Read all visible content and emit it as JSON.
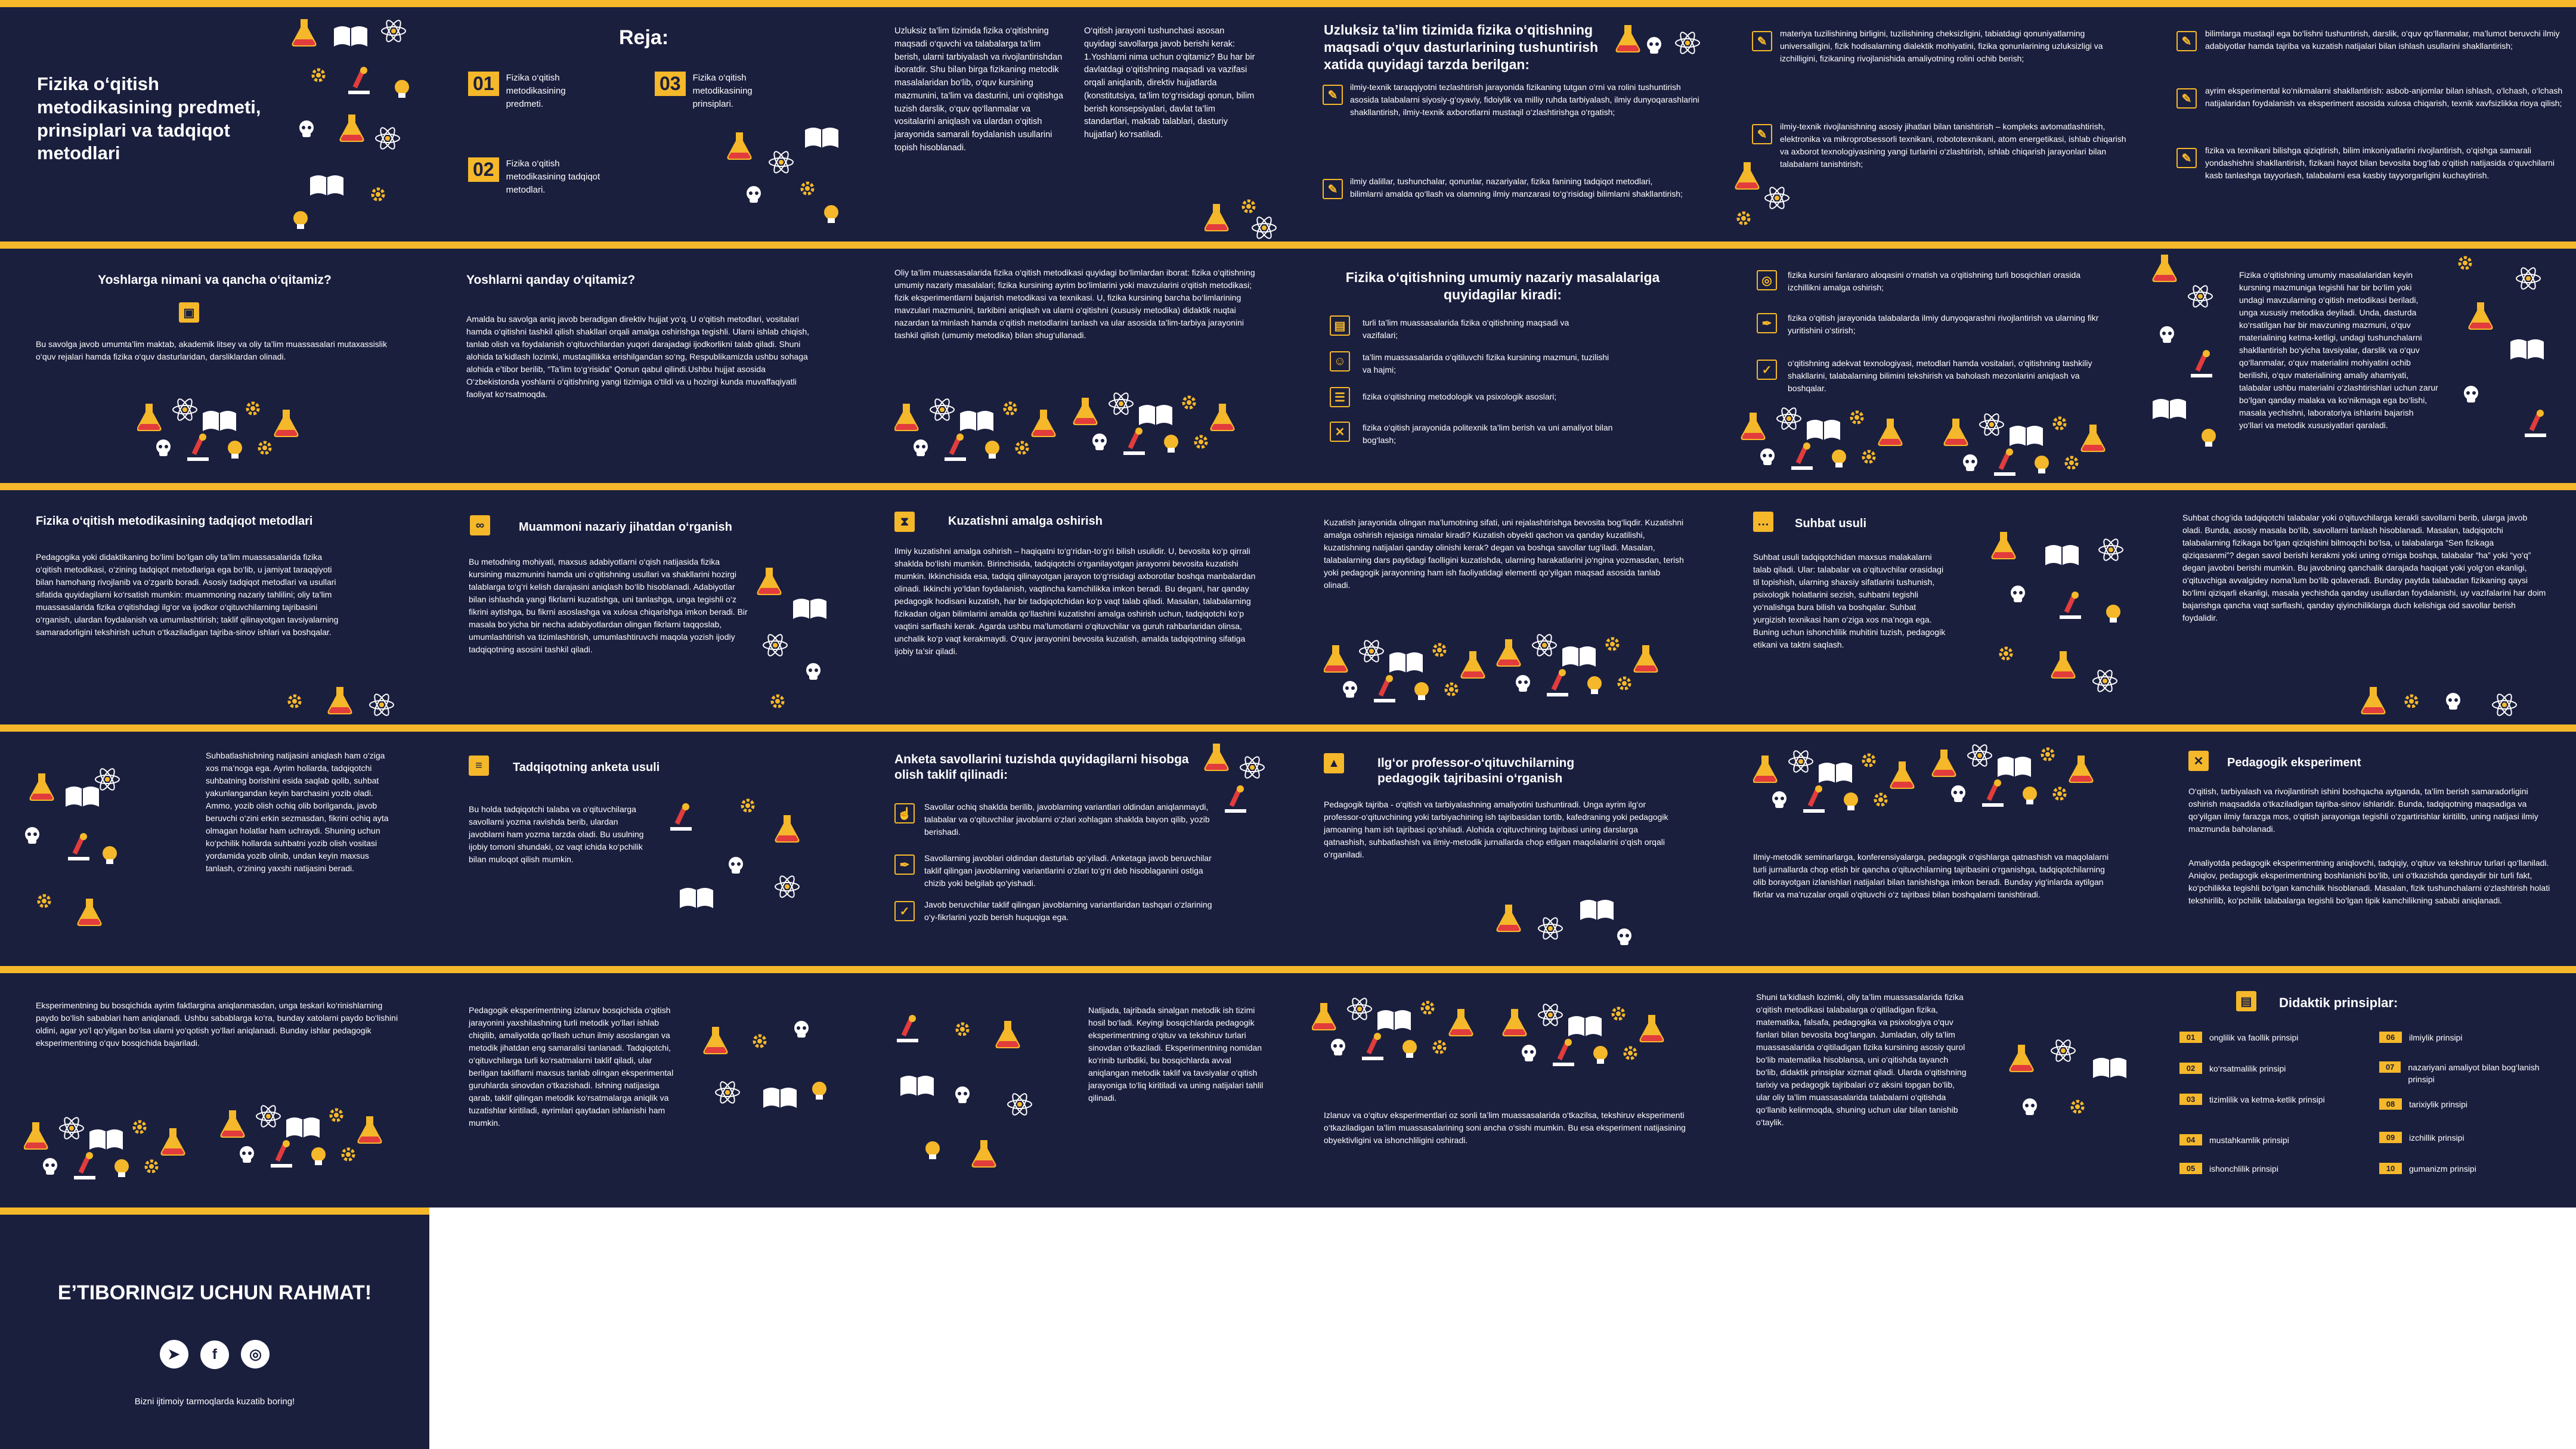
{
  "colors": {
    "background": "#1b1f3e",
    "accent": "#f5b82a",
    "text": "#ffffff"
  },
  "s1": {
    "title": "Fizika o‘qitish metodikasining predmeti, prinsiplari va tadqiqot metodlari"
  },
  "s2": {
    "title": "Reja:",
    "items": [
      {
        "num": "01",
        "text": "Fizika o‘qitish metodikasining predmeti."
      },
      {
        "num": "02",
        "text": "Fizika o‘qitish metodikasining tadqiqot metodlari."
      },
      {
        "num": "03",
        "text": "Fizika o‘qitish metodikasining prinsiplari."
      }
    ]
  },
  "s3": {
    "col1": "Uzluksiz ta’lim tizimida fizika o‘qitishning maqsadi o‘quvchi va talabalarga ta’lim berish, ularni tarbiyalash va rivojlantirishdan iboratdir. Shu bilan birga fizikaning metodik masalalaridan bo‘lib, o‘quv kursining mazmunini, ta’lim va dasturini, uni o‘qitishga tuzish darslik, o‘quv qo‘llanmalar va vositalarini aniqlash va ulardan o‘qitish jarayonida samarali foydalanish usullarini topish hisoblanadi.",
    "col2": "O‘qitish jarayoni tushunchasi asosan quyidagi savollarga javob berishi kerak: 1.Yoshlarni nima uchun o‘qitamiz? Bu har bir davlatdagi o‘qitishning maqsadi va vazifasi orqali aniqlanib, direktiv hujjatlarda (konstitutsiya, ta’lim to‘g‘risidagi qonun, bilim berish konsepsiyalari, davlat ta’lim standartlari, maktab talablari, dasturiy hujjatlar) ko‘rsatiladi."
  },
  "s4": {
    "title": "Uzluksiz ta’lim tizimida fizika o‘qitishning maqsadi o‘quv dasturlarining tushuntirish xatida quyidagi tarzda berilgan:",
    "items": [
      "ilmiy-texnik taraqqiyotni tezlashtirish jarayonida fizikaning tutgan o‘rni va rolini tushuntirish asosida talabalarni siyosiy-g‘oyaviy, fidoiylik va milliy ruhda tarbiyalash, ilmiy dunyoqarashlarini shakllantirish, ilmiy-texnik axborotlarni mustaqil o‘zlashtirishga o‘rgatish;",
      "ilmiy dalillar, tushunchalar, qonunlar, nazariyalar, fizika fanining tadqiqot metodlari, bilimlarni amalda qo‘llash va olamning ilmiy manzarasi to‘g‘risidagi bilimlarni shakllantirish;"
    ]
  },
  "s5": {
    "items": [
      "materiya tuzilishining birligini, tuzilishining cheksizligini, tabiatdagi qonuniyatlarning universalligini, fizik hodisalarning dialektik mohiyatini, fizika qonunlarining uzluksizligi va izchilligini, fizikaning rivojlanishida amaliyotning rolini ochib berish;",
      "ilmiy-texnik rivojlanishning asosiy jihatlari bilan tanishtirish – kompleks avtomatlashtirish, elektronika va mikroprotsessorli texnikani, robototexnikani, atom energetikasi, ishlab chiqarish va axborot texnologiyasining yangi turlarini o‘zlashtirish, ishlab chiqarish jarayonlari bilan talabalarni tanishtirish;"
    ]
  },
  "s6": {
    "items": [
      "bilimlarga mustaqil ega bo‘lishni tushuntirish, darslik, o‘quv qo‘llanmalar, ma’lumot beruvchi ilmiy adabiyotlar hamda tajriba va kuzatish natijalari bilan ishlash usullarini shakllantirish;",
      "ayrim eksperimental ko‘nikmalarni shakllantirish: asbob-anjomlar bilan ishlash, o‘lchash, o‘lchash natijalaridan foydalanish va eksperiment asosida xulosa chiqarish, texnik xavfsizlikka rioya qilish;",
      "fizika va texnikani bilishga qiziqtirish, bilim imkoniyatlarini rivojlantirish, o‘qishga samarali yondashishni shakllantirish, fizikani hayot bilan bevosita bog‘lab o‘qitish natijasida o‘quvchilarni kasb tanlashga tayyorlash, talabalarni esa kasbiy tayyorgarligini kuchaytirish."
    ]
  },
  "s7": {
    "title": "Yoshlarga nimani va qancha o‘qitamiz?",
    "text": "Bu savolga javob umumta’lim maktab, akademik litsey va oliy ta’lim muassasalari mutaxassislik o‘quv rejalari hamda fizika o‘quv dasturlaridan, darsliklardan olinadi."
  },
  "s8": {
    "title": "Yoshlarni qanday o‘qitamiz?",
    "text": "Amalda bu savolga aniq javob beradigan direktiv hujjat yo‘q. U o‘qitish metodlari, vositalari hamda o‘qitishni tashkil qilish shakllari orqali amalga oshirishga tegishli. Ularni ishlab chiqish, tanlab olish va foydalanish o‘qituvchilardan yuqori darajadagi ijodkorlikni talab qiladi. Shuni alohida ta’kidlash lozimki, mustaqillikka erishilgandan so‘ng, Respublikamizda ushbu sohaga alohida e’tibor berilib, “Ta’lim to‘g‘risida” Qonun qabul qilindi.Ushbu hujjat asosida O‘zbekistonda yoshlarni o‘qitishning yangi tizimiga o‘tildi va u hozirgi kunda muvaffaqiyatli faoliyat ko‘rsatmoqda."
  },
  "s9": {
    "text": "Oliy ta’lim muassasalarida fizika o‘qitish metodikasi quyidagi bo‘limlardan iborat: fizika o‘qitishning umumiy nazariy masalalari; fizika kursining ayrim bo‘limlarini yoki mavzularini o‘qitish metodikasi; fizik eksperimentlarni bajarish metodikasi va texnikasi. U, fizika kursining barcha bo‘limlarining mavzulari mazmunini, tarkibini aniqlash va ularni o‘qitishni (xususiy metodika) didaktik nuqtai nazardan ta’minlash hamda o‘qitish metodlarini tanlash va ular asosida ta’lim-tarbiya jarayonini tashkil qilish (umumiy metodika) bilan shug‘ullanadi."
  },
  "s10": {
    "title": "Fizika o‘qitishning umumiy nazariy masalalariga quyidagilar kiradi:",
    "items": [
      "turli ta’lim muassasalarida fizika o‘qitishning maqsadi va vazifalari;",
      "ta’lim muassasalarida o‘qitiluvchi fizika kursining mazmuni, tuzilishi va hajmi;",
      "fizika o‘qitishning metodologik va psixologik asoslari;",
      "fizika o‘qitish jarayonida politexnik ta’lim berish va uni amaliyot bilan bog‘lash;"
    ]
  },
  "s11": {
    "items": [
      "fizika kursini fanlararo aloqasini o‘rnatish va o‘qitishning turli bosqichlari orasida izchillikni amalga oshirish;",
      "fizika o‘qitish jarayonida talabalarda ilmiy dunyoqarashni rivojlantirish va ularning fikr yuritishini o‘stirish;",
      "o‘qitishning adekvat texnologiyasi, metodlari hamda vositalari, o‘qitishning tashkiliy shakllarini, talabalarning bilimini tekshirish va baholash mezonlarini aniqlash va boshqalar."
    ]
  },
  "s12": {
    "text": "Fizika o‘qitishning umumiy masalalaridan keyin kursning mazmuniga tegishli har bir bo‘lim yoki undagi mavzularning o‘qitish metodikasi beriladi, unga xususiy metodika deyiladi. Unda, dasturda ko‘rsatilgan har bir mavzuning mazmuni, o‘quv materialining ketma-ketligi, undagi tushunchalarni shakllantirish bo‘yicha tavsiyalar, darslik va o‘quv qo‘llanmalar, o‘quv materialini mohiyatini ochib berilishi, o‘quv materialining amaliy ahamiyati, talabalar ushbu materialni o‘zlashtirishlari uchun zarur bo‘lgan qanday malaka va ko‘nikmaga ega bo‘lishi, masala yechishni, laboratoriya ishlarini bajarish yo‘llari va metodik xususiyatlari qaraladi."
  },
  "s13": {
    "title": "Fizika o‘qitish metodikasining tadqiqot metodlari",
    "text": "Pedagogika yoki didaktikaning bo‘limi bo‘lgan oliy ta’lim muassasalarida fizika o‘qitish metodikasi, o‘zining tadqiqot metodlariga ega bo‘lib, u jamiyat taraqqiyoti bilan hamohang rivojlanib va o‘zgarib boradi. Asosiy tadqiqot metodlari va usullari sifatida quyidagilarni ko‘rsatish mumkin: muammoning nazariy tahlilini; oliy ta’lim muassasalarida fizika o‘qitishdagi ilg‘or va ijodkor o‘qituvchilarning tajribasini o‘rganish, ulardan foydalanish va umumlashtirish; taklif qilinayotgan tavsiyalarning samaradorligini tekshirish uchun o‘tkaziladigan tajriba-sinov ishlari va boshqalar."
  },
  "s14": {
    "title": "Muammoni nazariy jihatdan o‘rganish",
    "text": "Bu metodning mohiyati, maxsus adabiyotlarni o‘qish natijasida fizika kursining mazmunini hamda uni o‘qitishning usullari va shakllarini hozirgi talablarga to‘g‘ri kelish darajasini aniqlash bo‘lib hisoblanadi. Adabiyotlar bilan ishlashda yangi fikrlarni kuzatishga, uni tanlashga, unga tegishli o‘z fikrini aytishga, bu fikrni asoslashga va xulosa chiqarishga imkon beradi. Bir masala bo‘yicha bir necha adabiyotlardan olingan fikrlarni taqqoslab, umumlashtirish va tizimlashtirish, umumlashtiruvchi maqola yozish ijodiy tadqiqotning asosini tashkil qiladi."
  },
  "s15": {
    "title": "Kuzatishni amalga oshirish",
    "text": "Ilmiy kuzatishni amalga oshirish – haqiqatni to‘g‘ridan-to‘g‘ri bilish usulidir. U, bevosita ko‘p qirrali shaklda bo‘lishi mumkin. Birinchisida, tadqiqotchi o‘rganilayotgan jarayonni bevosita kuzatishi mumkin. Ikkinchisida esa, tadqiq qilinayotgan jarayon to‘g‘risidagi axborotlar boshqa manbalardan olinadi. Ikkinchi yo‘ldan foydalanish, vaqtincha kamchilikka imkon beradi. Bu degani, har qanday pedagogik hodisani kuzatish, har bir tadqiqotchidan ko‘p vaqt talab qiladi. Masalan, talabalarning fizikadan olgan bilimlarini amalda qo‘llashini kuzatishni amalga oshirish uchun, tadqiqotchi ko‘p vaqtini sarflashi kerak. Agarda ushbu ma’lumotlarni o‘qituvchilar va guruh rahbarlaridan olinsa, unchalik ko‘p vaqt kerakmaydi. O‘quv jarayonini bevosita kuzatish, amalda tadqiqotning sifatiga ijobiy ta’sir qiladi."
  },
  "s16": {
    "text": "Kuzatish jarayonida olingan ma’lumotning sifati, uni rejalashtirishga bevosita bog‘liqdir. Kuzatishni amalga oshirish rejasiga nimalar kiradi? Kuzatish obyekti qachon va qanday kuzatilishi, kuzatishning natijalari qanday olinishi kerak? degan va boshqa savollar tug‘iladi. Masalan, talabalarning dars paytidagi faolligini kuzatishda, ularning harakatlarini jo‘ngina yozmasdan, terish yoki pedagogik jarayonning ham ish faoliyatidagi elementi qo‘yilgan maqsad asosida tanlab olinadi."
  },
  "s17": {
    "title": "Suhbat usuli",
    "text": "Suhbat usuli tadqiqotchidan maxsus malakalarni talab qiladi. Ular: talabalar va o‘qituvchilar orasidagi til topishish, ularning shaxsiy sifatlarini tushunish, psixologik holatlarini sezish, suhbatni tegishli yo‘nalishga bura bilish va boshqalar. Suhbat yurgizish texnikasi ham o‘ziga xos ma’noga ega. Buning uchun ishonchlilik muhitini tuzish, pedagogik etikani va taktni saqlash."
  },
  "s18": {
    "text": "Suhbat chog‘ida tadqiqotchi talabalar yoki o‘qituvchilarga kerakli savollarni berib, ularga javob oladi. Bunda, asosiy masala bo‘lib, savollarni tanlash hisoblanadi. Masalan, tadqiqotchi talabalarning fizikaga bo‘lgan qiziqishini bilmoqchi bo‘lsa, u talabalarga “Sen fizikaga qiziqasanmi”? degan savol berishi kerakmi yoki uning o‘rniga boshqa, talabalar “ha” yoki “yo‘q” degan javobni berishi mumkin. Bu javobning qanchalik darajada haqiqat yoki yolg‘on ekanligi, o‘qituvchiga avvalgidey noma’lum bo‘lib qolaveradi. Bunday paytda talabadan fizikaning qaysi bo‘limi qiziqarli ekanligi, masala yechishda qanday usullardan foydalanishi, uy vazifalarini har doim bajarishga qancha vaqt sarflashi, qanday qiyinchiliklarga duch kelishiga oid savollar berish foydalidir."
  },
  "s19": {
    "text": "Suhbatlashishning natijasini aniqlash ham o‘ziga xos ma’noga ega. Ayrim hollarda, tadqiqotchi suhbatning borishini esida saqlab qolib, suhbat yakunlangandan keyin barchasini yozib oladi. Ammo, yozib olish ochiq olib borilganda, javob beruvchi o‘zini erkin sezmasdan, fikrini ochiq ayta olmagan holatlar ham uchraydi. Shuning uchun ko‘pchilik hollarda suhbatni yozib olish vositasi yordamida yozib olinib, undan keyin maxsus tanlash, o‘zining yaxshi natijasini beradi."
  },
  "s20": {
    "title": "Tadqiqotning anketa usuli",
    "text": "Bu holda tadqiqotchi talaba va o‘qituvchilarga savollarni yozma ravishda berib, ulardan javoblarni ham yozma tarzda oladi. Bu usulning ijobiy tomoni shundaki, oz vaqt ichida ko‘pchilik bilan muloqot qilish mumkin."
  },
  "s21": {
    "title": "Anketa savollarini tuzishda quyidagilarni hisobga olish taklif qilinadi:",
    "items": [
      "Savollar ochiq shaklda berilib, javoblarning variantlari oldindan aniqlanmaydi, talabalar va o‘qituvchilar javoblarni o‘zlari xohlagan shaklda bayon qilib, yozib berishadi.",
      "Savollarning javoblari oldindan dasturlab qo‘yiladi. Anketaga javob beruvchilar taklif qilingan javoblarning variantlarini o‘zlari to‘g‘ri deb hisoblaganini ostiga chizib yoki belgilab qo‘yishadi.",
      "Javob beruvchilar taklif qilingan javoblarning variantlaridan tashqari o‘zlarining o‘y-fikrlarini yozib berish huquqiga ega."
    ]
  },
  "s22": {
    "title": "Ilg‘or professor-o‘qituvchilarning pedagogik tajribasini o‘rganish",
    "text": "Pedagogik tajriba - o‘qitish va tarbiyalashning amaliyotini tushuntiradi. Unga ayrim ilg‘or professor-o‘qituvchining yoki tarbiyachining ish tajribasidan tortib, kafedraning yoki pedagogik jamoaning ham ish tajribasi qo‘shiladi. Alohida o‘qituvchining tajribasi uning darslarga qatnashish, suhbatlashish va ilmiy-metodik jurnallarda chop etilgan maqolalarini o‘qish orqali o‘rganiladi."
  },
  "s23": {
    "text": "Ilmiy-metodik seminarlarga, konferensiyalarga, pedagogik o‘qishlarga qatnashish va maqolalarni turli jurnallarda chop etish bir qancha o‘qituvchilarning tajribasini o‘rganishga, tadqiqotchilarning olib borayotgan izlanishlari natijalari bilan tanishishga imkon beradi. Bunday yig‘inlarda aytilgan fikrlar va ma’ruzalar orqali o‘qituvchi o‘z tajribasi bilan boshqalarni tanishtiradi."
  },
  "s24": {
    "title": "Pedagogik eksperiment",
    "text1": "O‘qitish, tarbiyalash va rivojlantirish ishini boshqacha aytganda, ta’lim berish samaradorligini oshirish maqsadida o‘tkaziladigan tajriba-sinov ishlaridir. Bunda, tadqiqotning maqsadiga va qo‘yilgan ilmiy farazga mos, o‘qitish jarayoniga tegishli o‘zgartirishlar kiritilib, uning natijasi ilmiy mazmunda baholanadi.",
    "text2": "Amaliyotda pedagogik eksperimentning aniqlovchi, tadqiqiy, o‘qituv va tekshiruv turlari qo‘llaniladi. Aniqlov, pedagogik eksperimentning boshlanishi bo‘lib, uni o‘tkazishda qandaydir bir turli fakt, ko‘pchilikka tegishli bo‘lgan kamchilik hisoblanadi. Masalan, fizik tushunchalarni o‘zlashtirish holati tekshirilib, ko‘pchilik talabalarga tegishli bo‘lgan tipik kamchilikning sababi aniqlanadi."
  },
  "s25": {
    "text": "Eksperimentning bu bosqichida ayrim faktlargina aniqlanmasdan, unga teskari ko‘rinishlarning paydo bo‘lish sabablari ham aniqlanadi. Ushbu sabablarga ko‘ra, bunday xatolarni paydo bo‘lishini oldini, agar yo‘l qo‘yilgan bo‘lsa ularni yo‘qotish yo‘llari aniqlanadi. Bunday ishlar pedagogik eksperimentning o‘quv bosqichida bajariladi."
  },
  "s26": {
    "text": "Pedagogik eksperimentning izlanuv bosqichida o‘qitish jarayonini yaxshilashning turli metodik yo‘llari ishlab chiqilib, amaliyotda qo‘llash uchun ilmiy asoslangan va metodik jihatdan eng samaralisi tanlanadi. Tadqiqotchi, o‘qituvchilarga turli ko‘rsatmalarni taklif qiladi, ular berilgan takliflarni maxsus tanlab olingan eksperimental guruhlarda sinovdan o‘tkazishadi. Ishning natijasiga qarab, taklif qilingan metodik ko‘rsatmalarga aniqlik va tuzatishlar kiritiladi, ayrimlari qaytadan ishlanishi ham mumkin."
  },
  "s27": {
    "text": "Natijada, tajribada sinalgan metodik ish tizimi hosil bo‘ladi. Keyingi bosqichlarda pedagogik eksperimentning o‘qituv va tekshiruv turlari sinovdan o‘tkaziladi. Eksperimentning nomidan ko‘rinib turibdiki, bu bosqichlarda avval aniqlangan metodik taklif va tavsiyalar o‘qitish jarayoniga to‘liq kiritiladi va uning natijalari tahlil qilinadi."
  },
  "s28": {
    "text": "Izlanuv va o‘qituv eksperimentlari oz sonli ta’lim muassasalarida o‘tkazilsa, tekshiruv eksperimenti o‘tkaziladigan ta’lim muassasalarining soni ancha o‘sishi mumkin. Bu esa eksperiment natijasining obyektivligini va ishonchliligini oshiradi."
  },
  "s29": {
    "text": "Shuni ta’kidlash lozimki, oliy ta’lim muassasalarida fizika o‘qitish metodikasi talabalarga o‘qitiladigan fizika, matematika, falsafa, pedagogika va psixologiya o‘quv fanlari bilan bevosita bog‘langan. Jumladan, oliy ta’lim muassasalarida o‘qitiladigan fizika kursining asosiy qurol bo‘lib matematika hisoblansa, uni o‘qitishda tayanch bo‘lib, didaktik prinsiplar xizmat qiladi. Ularda o‘qitishning tarixiy va pedagogik tajribalari o‘z aksini topgan bo‘lib, ular oliy ta’lim muassasalarida talabalarni o‘qitishda qo‘llanib kelinmoqda, shuning uchun ular bilan tanishib o‘taylik."
  },
  "s30": {
    "title": "Didaktik prinsiplar:",
    "items": [
      {
        "num": "01",
        "text": "onglilik va faollik prinsipi"
      },
      {
        "num": "02",
        "text": "ko‘rsatmalilik prinsipi"
      },
      {
        "num": "03",
        "text": "tizimlilik va ketma-ketlik prinsipi"
      },
      {
        "num": "04",
        "text": "mustahkamlik prinsipi"
      },
      {
        "num": "05",
        "text": "ishonchlilik prinsipi"
      },
      {
        "num": "06",
        "text": "ilmiylik prinsipi"
      },
      {
        "num": "07",
        "text": "nazariyani amaliyot bilan bog‘lanish prinsipi"
      },
      {
        "num": "08",
        "text": "tarixiylik prinsipi"
      },
      {
        "num": "09",
        "text": "izchillik prinsipi"
      },
      {
        "num": "10",
        "text": "gumanizm prinsipi"
      }
    ]
  },
  "s31": {
    "title": "E’TIBORINGIZ UCHUN RAHMAT!",
    "social_icons": [
      "telegram-icon",
      "facebook-icon",
      "instagram-icon"
    ],
    "caption": "Bizni ijtimoiy tarmoqlarda kuzatib boring!"
  }
}
